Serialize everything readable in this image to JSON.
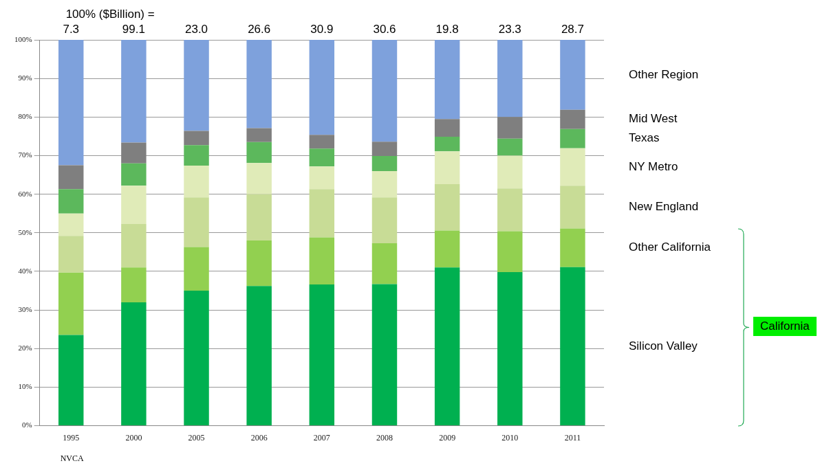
{
  "chart_data": {
    "type": "bar",
    "stacked": true,
    "categories": [
      "1995",
      "2000",
      "2005",
      "2006",
      "2007",
      "2008",
      "2009",
      "2010",
      "2011"
    ],
    "series": [
      {
        "name": "Silicon Valley",
        "color": "#00b050",
        "values": [
          23.5,
          32.0,
          35.0,
          36.2,
          36.6,
          36.7,
          41.0,
          39.8,
          41.1
        ]
      },
      {
        "name": "Other California",
        "color": "#92d050",
        "values": [
          16.2,
          9.0,
          11.3,
          11.8,
          12.2,
          10.6,
          9.6,
          10.6,
          10.0
        ]
      },
      {
        "name": "New England",
        "color": "#c8dc96",
        "values": [
          9.5,
          11.3,
          12.9,
          12.0,
          12.5,
          11.9,
          12.0,
          11.1,
          11.1
        ]
      },
      {
        "name": "NY Metro",
        "color": "#e0ebb8",
        "values": [
          5.8,
          9.9,
          8.2,
          8.1,
          5.9,
          6.8,
          8.5,
          8.5,
          9.7
        ]
      },
      {
        "name": "Texas",
        "color": "#5cb85c",
        "values": [
          6.3,
          5.8,
          5.3,
          5.4,
          4.6,
          3.9,
          3.8,
          4.4,
          5.0
        ]
      },
      {
        "name": "Mid West",
        "color": "#7f7f7f",
        "values": [
          6.2,
          5.4,
          3.7,
          3.6,
          3.6,
          3.7,
          4.6,
          5.6,
          5.0
        ]
      },
      {
        "name": "Other Region",
        "color": "#7ea1dc",
        "values": [
          32.5,
          26.6,
          23.6,
          22.9,
          24.6,
          26.4,
          20.5,
          20.0,
          18.1
        ]
      }
    ],
    "ylim": [
      0,
      100
    ],
    "yticks": [
      {
        "value": 0,
        "label": "0%"
      },
      {
        "value": 10,
        "label": "10%"
      },
      {
        "value": 20,
        "label": "20%"
      },
      {
        "value": 30,
        "label": "30%"
      },
      {
        "value": 40,
        "label": "40%"
      },
      {
        "value": 50,
        "label": "50%"
      },
      {
        "value": 60,
        "label": "60%"
      },
      {
        "value": 70,
        "label": "70%"
      },
      {
        "value": 80,
        "label": "80%"
      },
      {
        "value": 90,
        "label": "90%"
      },
      {
        "value": 100,
        "label": "100%"
      }
    ],
    "grid": "y",
    "legend": false,
    "annotations": [
      "100% ($Billion) =",
      {
        "text": "7.3",
        "x": "1995",
        "y": 100
      },
      {
        "text": "99.1",
        "x": "2000",
        "y": 100
      },
      {
        "text": "23.0",
        "x": "2005",
        "y": 100
      },
      {
        "text": "26.6",
        "x": "2006",
        "y": 100
      },
      {
        "text": "30.9",
        "x": "2007",
        "y": 100
      },
      {
        "text": "30.6",
        "x": "2008",
        "y": 100
      },
      {
        "text": "19.8",
        "x": "2009",
        "y": 100
      },
      {
        "text": "23.3",
        "x": "2010",
        "y": 100
      },
      {
        "text": "28.7",
        "x": "2011",
        "y": 100
      },
      "California",
      "NVCA"
    ]
  }
}
